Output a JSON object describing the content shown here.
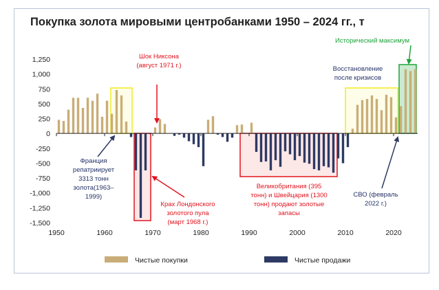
{
  "chart_data": {
    "type": "bar",
    "title": "Покупка золота мировыми центробанками 1950 – 2024 гг., т",
    "xlabel": "",
    "ylabel": "",
    "xlim": [
      1950,
      2025
    ],
    "ylim": [
      -1500,
      1250
    ],
    "x_ticks": [
      1950,
      1960,
      1970,
      1980,
      1990,
      2000,
      2010,
      2020
    ],
    "y_ticks": [
      -1500,
      -1250,
      -1000,
      -750,
      -500,
      -250,
      0,
      250,
      500,
      750,
      1000,
      1250
    ],
    "y_tick_labels": [
      "-1,500",
      "-1,250",
      "-1,000",
      "-750",
      "-500",
      "-250",
      "0",
      "250",
      "500",
      "750",
      "1,000",
      "1,250"
    ],
    "grid": false,
    "legend_position": "bottom",
    "series": [
      {
        "name": "Чистые покупки",
        "color": "#c9ad78"
      },
      {
        "name": "Чистые продажи",
        "color": "#2e3a63"
      }
    ],
    "x": [
      1950,
      1951,
      1952,
      1953,
      1954,
      1955,
      1956,
      1957,
      1958,
      1959,
      1960,
      1961,
      1962,
      1963,
      1964,
      1965,
      1966,
      1967,
      1968,
      1969,
      1970,
      1971,
      1972,
      1973,
      1974,
      1975,
      1976,
      1977,
      1978,
      1979,
      1980,
      1981,
      1982,
      1983,
      1984,
      1985,
      1986,
      1987,
      1988,
      1989,
      1990,
      1991,
      1992,
      1993,
      1994,
      1995,
      1996,
      1997,
      1998,
      1999,
      2000,
      2001,
      2002,
      2003,
      2004,
      2005,
      2006,
      2007,
      2008,
      2009,
      2010,
      2011,
      2012,
      2013,
      2014,
      2015,
      2016,
      2017,
      2018,
      2019,
      2020,
      2021,
      2022,
      2023,
      2024
    ],
    "values": [
      230,
      210,
      400,
      600,
      600,
      430,
      600,
      550,
      670,
      280,
      550,
      330,
      730,
      640,
      200,
      -60,
      -620,
      -1420,
      -620,
      -10,
      100,
      240,
      160,
      0,
      -40,
      -20,
      -70,
      -130,
      -180,
      -230,
      -550,
      230,
      290,
      -20,
      -60,
      -140,
      -70,
      140,
      150,
      10,
      180,
      -310,
      -480,
      -470,
      -620,
      -450,
      -560,
      -300,
      -350,
      -450,
      -380,
      -490,
      -510,
      -600,
      -620,
      -550,
      -570,
      -660,
      -420,
      -500,
      -230,
      80,
      480,
      560,
      580,
      640,
      580,
      390,
      650,
      610,
      270,
      460,
      1080,
      1050,
      1080
    ]
  },
  "annotations": {
    "nixon": "Шок Никсона (август 1971 г.)",
    "nixon_l1": "Шок Никсона",
    "nixon_l2": "(август 1971 г.)",
    "record_high": "Исторический максимум",
    "recovery_l1": "Восстановление",
    "recovery_l2": "после кризисов",
    "france_l1": "Франция",
    "france_l2": "репатриирует",
    "france_l3": "3313 тонн",
    "france_l4": "золота(1963–",
    "france_l5": "1999)",
    "london_l1": "Крах Лондонского",
    "london_l2": "золотого пула",
    "london_l3": "(март 1968 г.)",
    "uk_l1": "Великобритания (395",
    "uk_l2": "тонн) и Швейцария (1300",
    "uk_l3": "тонн) продают золотые",
    "uk_l4": "запасы",
    "svo_l1": "СВО (февраль",
    "svo_l2": "2022 г.)"
  },
  "colors": {
    "buy": "#c9ad78",
    "sell": "#2e3a63",
    "red": "#e0141e",
    "green": "#1fa33a",
    "yellow": "#f5f23a",
    "navy_text": "#243266",
    "arrow_navy": "#2e3a63"
  }
}
